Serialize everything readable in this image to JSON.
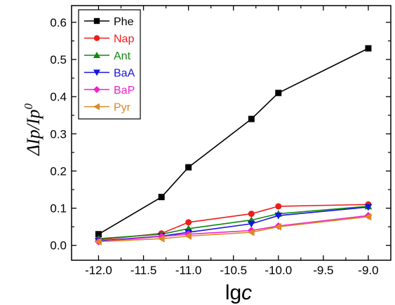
{
  "chart_data": {
    "type": "line",
    "title": "",
    "xlabel": "lgc",
    "xlabel_parts": {
      "main": "lg",
      "var": "c"
    },
    "ylabel": "ΔIp/Ip0",
    "ylabel_parts": {
      "main": "ΔIp/Ip",
      "sup": "0"
    },
    "xlim": [
      -12.3,
      -8.75
    ],
    "ylim": [
      -0.04,
      0.645
    ],
    "xticks": [
      -12.0,
      -11.5,
      -11.0,
      -10.5,
      -10.0,
      -9.5,
      -9.0
    ],
    "xtick_labels": [
      "-12.0",
      "-11.5",
      "-11.0",
      "-10.5",
      "-10.0",
      "-9.5",
      "-9.0"
    ],
    "yticks": [
      0.0,
      0.1,
      0.2,
      0.3,
      0.4,
      0.5,
      0.6
    ],
    "ytick_labels": [
      "0.0",
      "0.1",
      "0.2",
      "0.3",
      "0.4",
      "0.5",
      "0.6"
    ],
    "grid": false,
    "legend_position": "top-left",
    "x": [
      -12.0,
      -11.3,
      -11.0,
      -10.3,
      -10.0,
      -9.0
    ],
    "series": [
      {
        "name": "Phe",
        "color": "#000000",
        "marker": "square",
        "values": [
          0.03,
          0.13,
          0.21,
          0.34,
          0.41,
          0.53
        ]
      },
      {
        "name": "Nap",
        "color": "#ee1c1c",
        "marker": "circle",
        "values": [
          0.015,
          0.032,
          0.062,
          0.085,
          0.105,
          0.11
        ]
      },
      {
        "name": "Ant",
        "color": "#118811",
        "marker": "triangle-up",
        "values": [
          0.018,
          0.03,
          0.045,
          0.068,
          0.085,
          0.105
        ]
      },
      {
        "name": "BaA",
        "color": "#1515dd",
        "marker": "triangle-down",
        "values": [
          0.012,
          0.025,
          0.035,
          0.058,
          0.08,
          0.103
        ]
      },
      {
        "name": "BaP",
        "color": "#ee22cc",
        "marker": "diamond",
        "values": [
          0.01,
          0.024,
          0.03,
          0.04,
          0.052,
          0.08
        ]
      },
      {
        "name": "Pyr",
        "color": "#dd8822",
        "marker": "triangle-left",
        "values": [
          0.01,
          0.018,
          0.025,
          0.035,
          0.05,
          0.077
        ]
      }
    ]
  }
}
